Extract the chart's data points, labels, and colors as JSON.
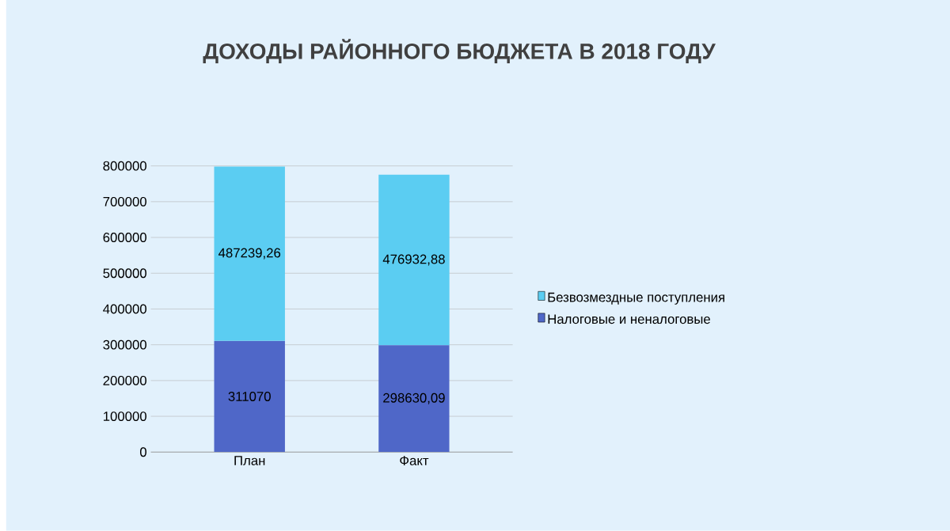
{
  "chart_data": {
    "type": "bar",
    "title": "ДОХОДЫ РАЙОННОГО БЮДЖЕТА В 2018 ГОДУ",
    "categories": [
      "План",
      "Факт"
    ],
    "stacked": true,
    "series": [
      {
        "name": "Налоговые и неналоговые",
        "color": "#4f67c8",
        "values": [
          311070,
          298630.09
        ],
        "value_labels": [
          "311070",
          "298630,09"
        ]
      },
      {
        "name": "Безвозмездные поступления",
        "color": "#5bcdf2",
        "values": [
          487239.26,
          476932.88
        ],
        "value_labels": [
          "487239,26",
          "476932,88"
        ]
      }
    ],
    "ylim": [
      0,
      800000
    ],
    "yticks": [
      0,
      100000,
      200000,
      300000,
      400000,
      500000,
      600000,
      700000,
      800000
    ],
    "grid": "y",
    "legend": "right"
  }
}
